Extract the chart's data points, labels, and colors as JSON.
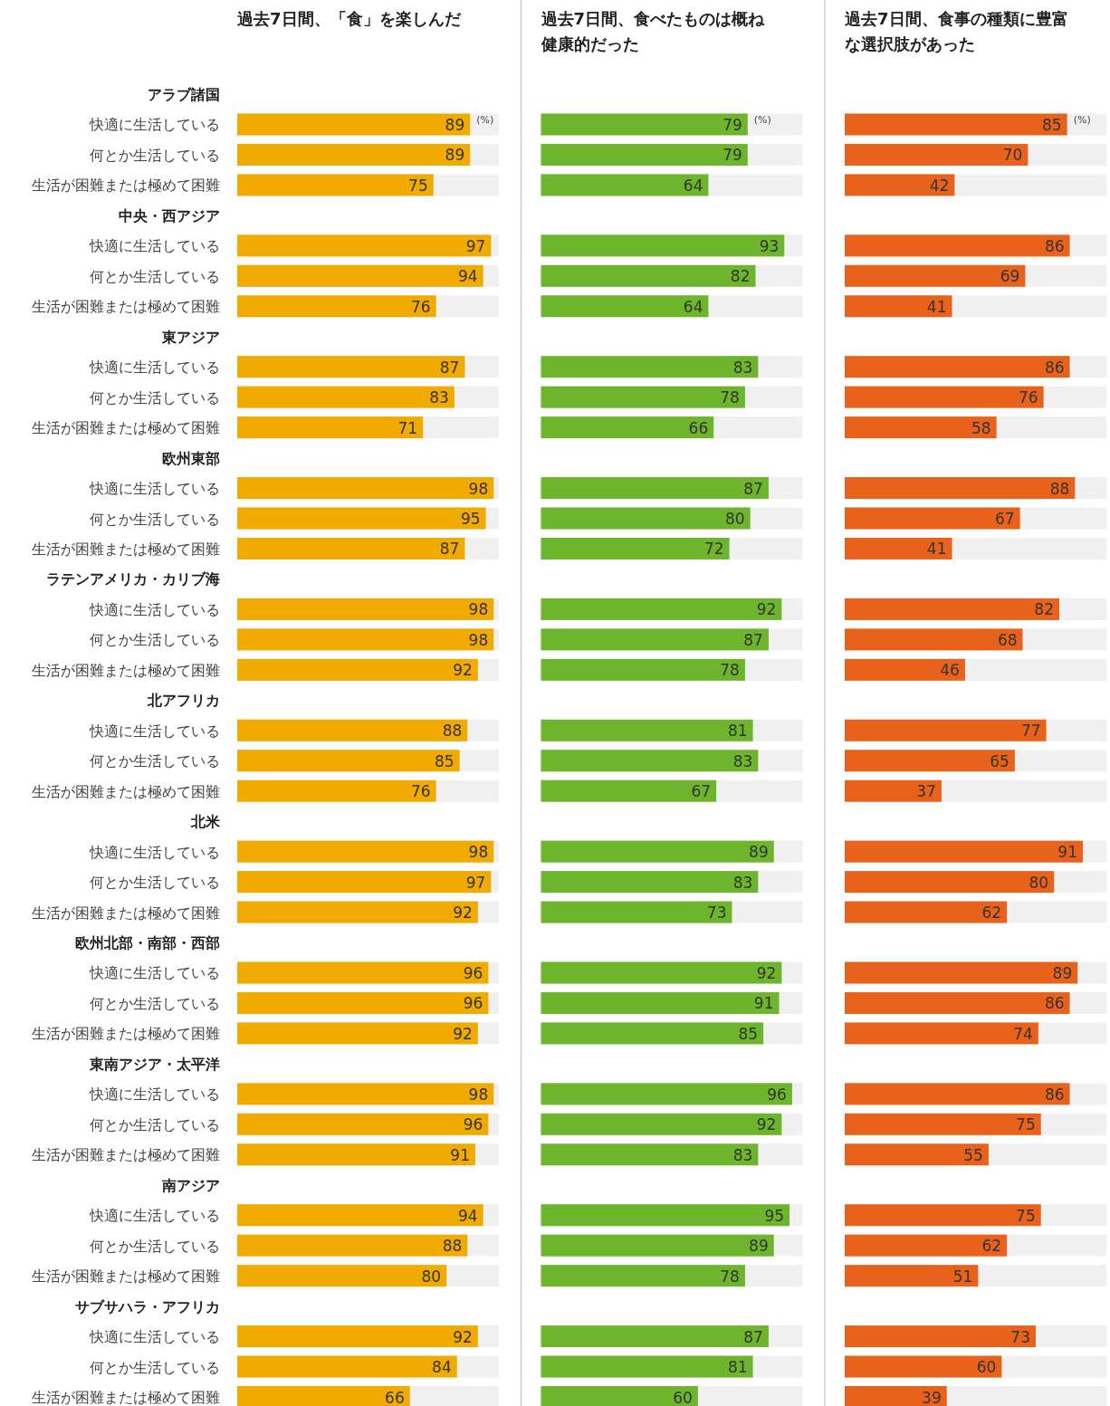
{
  "chart_data": [
    {
      "type": "bar",
      "orientation": "horizontal",
      "title": "過去7日間、「食」を楽しんだ",
      "color": "#f0aa00",
      "xlim": [
        0,
        100
      ],
      "data_labels": true,
      "tick_labels": "y",
      "annotations": [
        "(%)"
      ],
      "categories": [
        "アラブ諸国",
        "快適に生活している",
        "何とか生活している",
        "生活が困難または極めて困難",
        "中央・西アジア",
        "快適に生活している",
        "何とか生活している",
        "生活が困難または極めて困難",
        "東アジア",
        "快適に生活している",
        "何とか生活している",
        "生活が困難または極めて困難",
        "欧州東部",
        "快適に生活している",
        "何とか生活している",
        "生活が困難または極めて困難",
        "ラテンアメリカ・カリブ海",
        "快適に生活している",
        "何とか生活している",
        "生活が困難または極めて困難",
        "北アフリカ",
        "快適に生活している",
        "何とか生活している",
        "生活が困難または極めて困難",
        "北米",
        "快適に生活している",
        "何とか生活している",
        "生活が困難または極めて困難",
        "欧州北部・南部・西部",
        "快適に生活している",
        "何とか生活している",
        "生活が困難または極めて困難",
        "東南アジア・太平洋",
        "快適に生活している",
        "何とか生活している",
        "生活が困難または極めて困難",
        "南アジア",
        "快適に生活している",
        "何とか生活している",
        "生活が困難または極めて困難",
        "サブサハラ・アフリカ",
        "快適に生活している",
        "何とか生活している",
        "生活が困難または極めて困難"
      ],
      "values": [
        null,
        89,
        89,
        75,
        null,
        97,
        94,
        76,
        null,
        87,
        83,
        71,
        null,
        98,
        95,
        87,
        null,
        98,
        98,
        92,
        null,
        88,
        85,
        76,
        null,
        98,
        97,
        92,
        null,
        96,
        96,
        92,
        null,
        98,
        96,
        91,
        null,
        94,
        88,
        80,
        null,
        92,
        84,
        66
      ]
    },
    {
      "type": "bar",
      "orientation": "horizontal",
      "title": "過去7日間、食べたものは概ね健康的だった",
      "color": "#6cb52d",
      "xlim": [
        0,
        100
      ],
      "data_labels": true,
      "tick_labels": false,
      "annotations": [
        "(%)"
      ],
      "categories": [
        null,
        null,
        null,
        null,
        null,
        null,
        null,
        null,
        null,
        null,
        null,
        null,
        null,
        null,
        null,
        null,
        null,
        null,
        null,
        null,
        null,
        null,
        null,
        null,
        null,
        null,
        null,
        null,
        null,
        null,
        null,
        null,
        null,
        null,
        null,
        null,
        null,
        null,
        null,
        null,
        null,
        null,
        null,
        null
      ],
      "values": [
        null,
        79,
        79,
        64,
        null,
        93,
        82,
        64,
        null,
        83,
        78,
        66,
        null,
        87,
        80,
        72,
        null,
        92,
        87,
        78,
        null,
        81,
        83,
        67,
        null,
        89,
        83,
        73,
        null,
        92,
        91,
        85,
        null,
        96,
        92,
        83,
        null,
        95,
        89,
        78,
        null,
        87,
        81,
        60
      ]
    },
    {
      "type": "bar",
      "orientation": "horizontal",
      "title": "過去7日間、食事の種類に豊富な選択肢があった",
      "color": "#e8621c",
      "xlim": [
        0,
        100
      ],
      "data_labels": true,
      "tick_labels": false,
      "annotations": [
        "(%)"
      ],
      "categories": [
        null,
        null,
        null,
        null,
        null,
        null,
        null,
        null,
        null,
        null,
        null,
        null,
        null,
        null,
        null,
        null,
        null,
        null,
        null,
        null,
        null,
        null,
        null,
        null,
        null,
        null,
        null,
        null,
        null,
        null,
        null,
        null,
        null,
        null,
        null,
        null,
        null,
        null,
        null,
        null,
        null,
        null,
        null,
        null
      ],
      "values": [
        null,
        85,
        70,
        42,
        null,
        86,
        69,
        41,
        null,
        86,
        76,
        58,
        null,
        88,
        67,
        41,
        null,
        82,
        68,
        46,
        null,
        77,
        65,
        37,
        null,
        91,
        80,
        62,
        null,
        89,
        86,
        74,
        null,
        86,
        75,
        55,
        null,
        75,
        62,
        51,
        null,
        73,
        60,
        39
      ]
    }
  ]
}
